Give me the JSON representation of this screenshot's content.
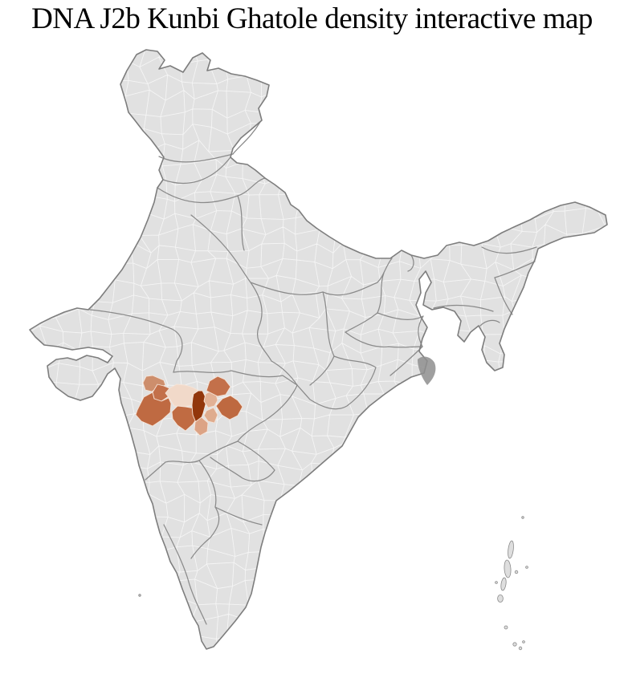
{
  "title": "DNA J2b Kunbi Ghatole density interactive map",
  "map": {
    "region": "India district map",
    "background": "#ffffff",
    "land_fill": "#e1e1e1",
    "district_border_color": "#f5f5f5",
    "state_border_color": "#8a8a8a",
    "outline_color": "#7d7d7d",
    "delta_patch_color": "#8e8e8e",
    "island_fill": "#dedede",
    "density_levels": {
      "highest": "#92360b",
      "high": "#bf6a42",
      "medium": "#cd8e6c",
      "low": "#dcab8d",
      "lowest": "#f1d9c9"
    },
    "highlighted_districts": [
      {
        "id": "district-1",
        "level": "medium",
        "color": "#cd8e6c"
      },
      {
        "id": "district-2",
        "level": "high",
        "color": "#c3704a"
      },
      {
        "id": "district-3",
        "level": "high",
        "color": "#bf6a42"
      },
      {
        "id": "district-4",
        "level": "lowest",
        "color": "#f1d9c9"
      },
      {
        "id": "district-5",
        "level": "high",
        "color": "#c06b42"
      },
      {
        "id": "district-6",
        "level": "highest",
        "color": "#92360b"
      },
      {
        "id": "district-7",
        "level": "low",
        "color": "#e2b195"
      },
      {
        "id": "district-8",
        "level": "high",
        "color": "#c3704a"
      },
      {
        "id": "district-9",
        "level": "high",
        "color": "#be6940"
      },
      {
        "id": "district-10",
        "level": "low",
        "color": "#dfac8e"
      },
      {
        "id": "district-11",
        "level": "low",
        "color": "#dca385"
      }
    ]
  }
}
